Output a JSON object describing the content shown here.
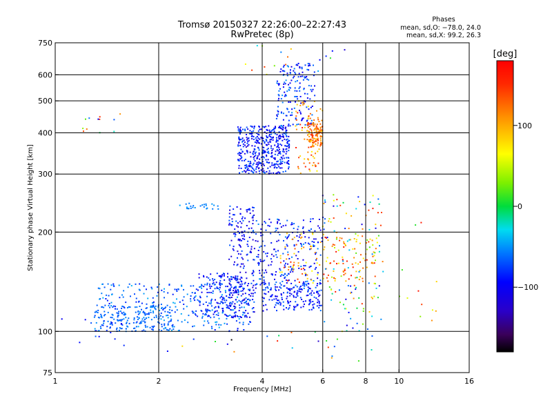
{
  "chart_data": {
    "type": "scatter",
    "title": "Tromsø 20150327 22:26:00–22:27:43",
    "subtitle": "RwPretec (8p)",
    "xlabel": "Frequency [MHz]",
    "ylabel": "Stationary phase Virtual Height [km]",
    "x_scale": "log",
    "y_scale": "log",
    "xlim": [
      1,
      16
    ],
    "ylim": [
      75,
      750
    ],
    "x_ticks": [
      1,
      2,
      4,
      6,
      8,
      10,
      16
    ],
    "x_tick_labels": [
      "1",
      "2",
      "4",
      "6",
      "8",
      "10",
      "16"
    ],
    "x_gridlines": [
      2,
      4,
      6,
      8,
      10
    ],
    "y_ticks": [
      75,
      100,
      200,
      300,
      400,
      500,
      600,
      750
    ],
    "y_tick_labels": [
      "75",
      "100",
      "200",
      "300",
      "400",
      "500",
      "600",
      "750"
    ],
    "y_gridlines": [
      100,
      200,
      300,
      400,
      500,
      600
    ],
    "grid": true,
    "legend_placement": "top-right",
    "annotation": {
      "heading": "Phases",
      "line1": "mean, sd,O: −78.0, 24.0",
      "line2": "mean, sd,X:  99.2, 26.3"
    },
    "colorbar": {
      "label": "[deg]",
      "range": [
        -180,
        180
      ],
      "ticks": [
        100,
        0,
        -100
      ],
      "tick_labels": [
        "100",
        "0",
        "−100"
      ],
      "colormap": "rainbow"
    },
    "clusters": [
      {
        "x": [
          1.3,
          3.7
        ],
        "y": [
          100,
          140
        ],
        "phase": [
          -90,
          -40
        ],
        "n": 320
      },
      {
        "x": [
          1.3,
          2.2
        ],
        "y": [
          100,
          120
        ],
        "phase": [
          -70,
          -55
        ],
        "n": 160
      },
      {
        "x": [
          2.6,
          3.6
        ],
        "y": [
          110,
          150
        ],
        "phase": [
          -110,
          -60
        ],
        "n": 160
      },
      {
        "x": [
          3.2,
          3.8
        ],
        "y": [
          110,
          240
        ],
        "phase": [
          -130,
          -60
        ],
        "n": 220
      },
      {
        "x": [
          3.8,
          6.0
        ],
        "y": [
          130,
          220
        ],
        "phase": [
          -120,
          -50
        ],
        "n": 260
      },
      {
        "x": [
          4.0,
          6.0
        ],
        "y": [
          115,
          140
        ],
        "phase": [
          -110,
          -60
        ],
        "n": 160
      },
      {
        "x": [
          3.4,
          4.8
        ],
        "y": [
          300,
          420
        ],
        "phase": [
          -120,
          -60
        ],
        "n": 460
      },
      {
        "x": [
          4.4,
          5.7
        ],
        "y": [
          420,
          650
        ],
        "phase": [
          -110,
          -50
        ],
        "n": 170
      },
      {
        "x": [
          5.4,
          6.0
        ],
        "y": [
          360,
          430
        ],
        "phase": [
          100,
          150
        ],
        "n": 110
      },
      {
        "x": [
          5.0,
          6.0
        ],
        "y": [
          300,
          500
        ],
        "phase": [
          60,
          170
        ],
        "n": 80
      },
      {
        "x": [
          4.5,
          8.6
        ],
        "y": [
          140,
          200
        ],
        "phase": [
          60,
          170
        ],
        "n": 130
      },
      {
        "x": [
          6.0,
          9.0
        ],
        "y": [
          100,
          260
        ],
        "phase": [
          -120,
          170
        ],
        "n": 140
      },
      {
        "x": [
          2.3,
          3.0
        ],
        "y": [
          235,
          245
        ],
        "phase": [
          -60,
          -45
        ],
        "n": 25
      },
      {
        "x": [
          1.0,
          1.6
        ],
        "y": [
          90,
          110
        ],
        "phase": [
          -120,
          -60
        ],
        "n": 14
      },
      {
        "x": [
          1.2,
          1.6
        ],
        "y": [
          390,
          460
        ],
        "phase": [
          -130,
          150
        ],
        "n": 12
      },
      {
        "x": [
          3.5,
          7.0
        ],
        "y": [
          600,
          740
        ],
        "phase": [
          -120,
          150
        ],
        "n": 18
      },
      {
        "x": [
          10.0,
          13.0
        ],
        "y": [
          95,
          220
        ],
        "phase": [
          0,
          170
        ],
        "n": 12
      },
      {
        "x": [
          4.0,
          8.5
        ],
        "y": [
          80,
          100
        ],
        "phase": [
          -140,
          170
        ],
        "n": 16
      },
      {
        "x": [
          2.0,
          3.5
        ],
        "y": [
          85,
          95
        ],
        "phase": [
          -180,
          170
        ],
        "n": 7
      }
    ]
  }
}
